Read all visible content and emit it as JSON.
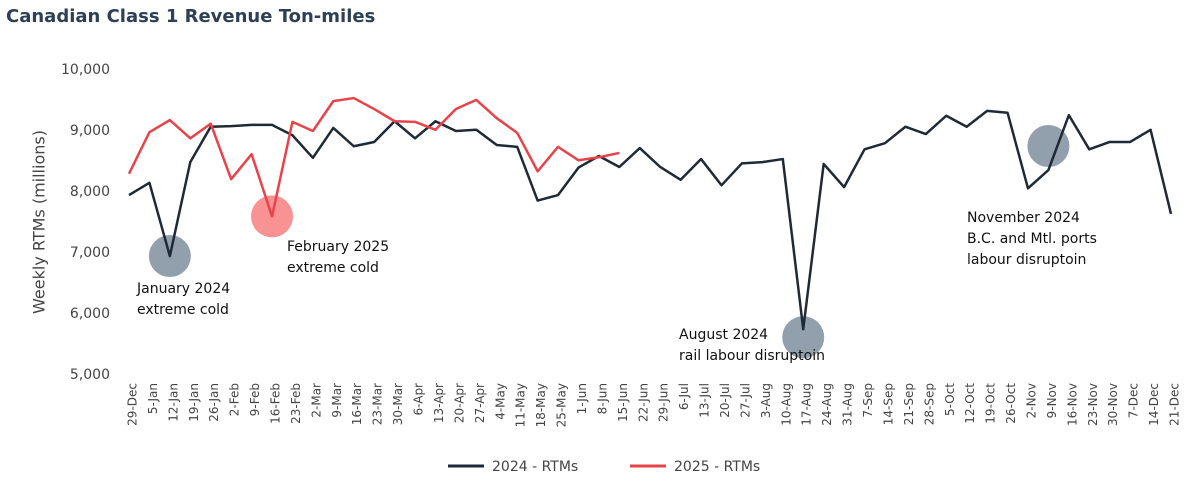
{
  "chart_data": {
    "type": "line",
    "title": "Canadian Class 1 Revenue Ton-miles",
    "y_label": "Weekly RTMs (millions)",
    "categories": [
      "29-Dec",
      "5-Jan",
      "12-Jan",
      "19-Jan",
      "26-Jan",
      "2-Feb",
      "9-Feb",
      "16-Feb",
      "23-Feb",
      "2-Mar",
      "9-Mar",
      "16-Mar",
      "23-Mar",
      "30-Mar",
      "6-Apr",
      "13-Apr",
      "20-Apr",
      "27-Apr",
      "4-May",
      "11-May",
      "18-May",
      "25-May",
      "1-Jun",
      "8-Jun",
      "15-Jun",
      "22-Jun",
      "29-Jun",
      "6-Jul",
      "13-Jul",
      "20-Jul",
      "27-Jul",
      "3-Aug",
      "10-Aug",
      "17-Aug",
      "24-Aug",
      "31-Aug",
      "7-Sep",
      "14-Sep",
      "21-Sep",
      "28-Sep",
      "5-Oct",
      "12-Oct",
      "19-Oct",
      "26-Oct",
      "2-Nov",
      "9-Nov",
      "16-Nov",
      "23-Nov",
      "30-Nov",
      "7-Dec",
      "14-Dec",
      "21-Dec"
    ],
    "series": [
      {
        "name": "2024 - RTMs",
        "color": "#1f2a36",
        "values": [
          7950,
          8150,
          6950,
          8490,
          9070,
          9080,
          9100,
          9100,
          8930,
          8560,
          9050,
          8750,
          8820,
          9160,
          8880,
          9160,
          9000,
          9020,
          8770,
          8740,
          7860,
          7950,
          8400,
          8590,
          8410,
          8720,
          8410,
          8200,
          8540,
          8110,
          8470,
          8490,
          8540,
          5750,
          8460,
          8080,
          8700,
          8800,
          9070,
          8950,
          9250,
          9070,
          9330,
          9300,
          8060,
          8360,
          9260,
          8700,
          8820,
          8820,
          9020,
          7640
        ]
      },
      {
        "name": "2025 - RTMs",
        "color": "#e8434a",
        "values": [
          8300,
          8980,
          9180,
          8880,
          9120,
          8210,
          8620,
          7600,
          9150,
          9000,
          9490,
          9540,
          9360,
          9160,
          9150,
          9020,
          9360,
          9510,
          9210,
          8970,
          8340,
          8740,
          8520,
          8570,
          8640,
          null,
          null,
          null,
          null,
          null,
          null,
          null,
          null,
          null,
          null,
          null,
          null,
          null,
          null,
          null,
          null,
          null,
          null,
          null,
          null,
          null,
          null,
          null,
          null,
          null,
          null,
          null
        ]
      }
    ],
    "ylim": [
      5000,
      10000
    ],
    "yticks": [
      {
        "value": 5000,
        "label": "5,000"
      },
      {
        "value": 6000,
        "label": "6,000"
      },
      {
        "value": 7000,
        "label": "7,000"
      },
      {
        "value": 8000,
        "label": "8,000"
      },
      {
        "value": 9000,
        "label": "9,000"
      },
      {
        "value": 10000,
        "label": "10,000"
      }
    ],
    "annotations": [
      {
        "lines": [
          "January 2024",
          "extreme cold"
        ]
      },
      {
        "lines": [
          "February 2025",
          "extreme cold"
        ]
      },
      {
        "lines": [
          "August 2024",
          "rail labour disruptoin"
        ]
      },
      {
        "lines": [
          "November 2024",
          "B.C. and Mtl. ports",
          "labour disruptoin"
        ]
      }
    ]
  }
}
